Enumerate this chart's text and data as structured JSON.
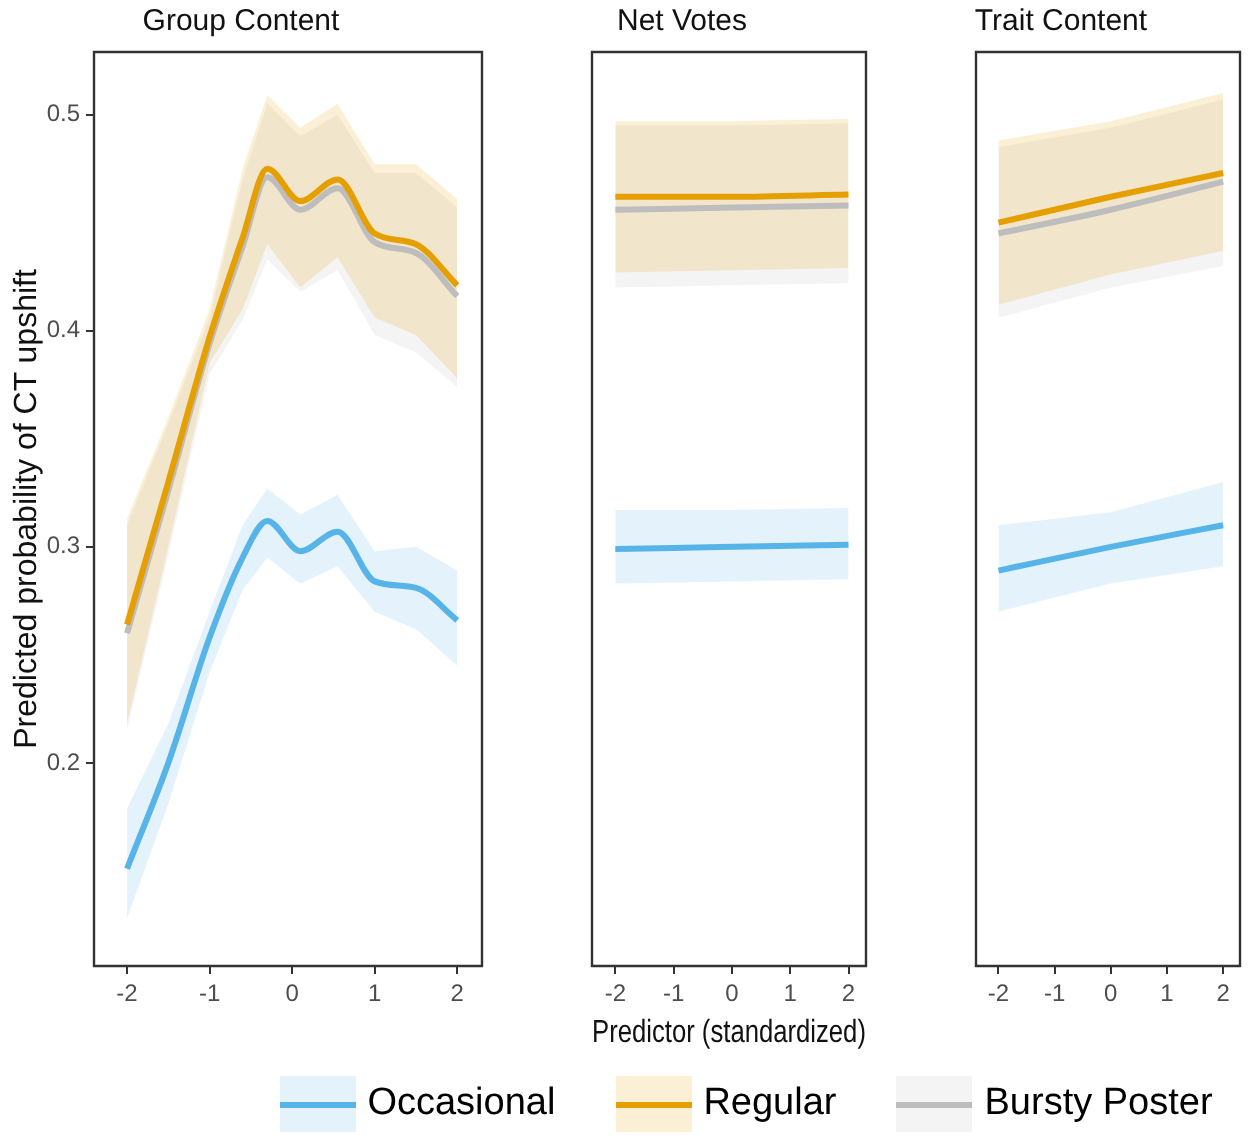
{
  "chart_data": [
    {
      "type": "line",
      "title": "Group Content",
      "ylabel": "Predicted probability of CT upshift",
      "xlim": [
        -2.4,
        2.3
      ],
      "xticks": [
        -2,
        -1,
        0,
        1,
        2
      ],
      "ylim": [
        0.106,
        0.529
      ],
      "yticks": [
        0.2,
        0.3,
        0.4,
        0.5
      ],
      "grid": false,
      "legend": "bottom",
      "x": [
        -2,
        -1.5,
        -1,
        -0.6,
        -0.3,
        0.1,
        0.55,
        1,
        1.5,
        2
      ],
      "series": [
        {
          "name": "Occasional",
          "color": "#56b4e9",
          "values": [
            0.151,
            0.2,
            0.258,
            0.295,
            0.312,
            0.298,
            0.307,
            0.284,
            0.281,
            0.266
          ],
          "lower": [
            0.128,
            0.181,
            0.242,
            0.28,
            0.295,
            0.283,
            0.291,
            0.27,
            0.262,
            0.245
          ],
          "upper": [
            0.179,
            0.218,
            0.27,
            0.31,
            0.327,
            0.315,
            0.324,
            0.298,
            0.3,
            0.289
          ]
        },
        {
          "name": "Regular",
          "color": "#e69f00",
          "values": [
            0.264,
            0.33,
            0.397,
            0.443,
            0.475,
            0.46,
            0.47,
            0.445,
            0.44,
            0.421
          ],
          "lower": [
            0.218,
            0.3,
            0.385,
            0.41,
            0.44,
            0.42,
            0.434,
            0.406,
            0.398,
            0.378
          ],
          "upper": [
            0.313,
            0.36,
            0.41,
            0.475,
            0.509,
            0.494,
            0.505,
            0.477,
            0.477,
            0.461
          ]
        },
        {
          "name": "Bursty Poster",
          "color": "#bdbdbd",
          "values": [
            0.26,
            0.326,
            0.394,
            0.439,
            0.471,
            0.456,
            0.466,
            0.441,
            0.436,
            0.416
          ],
          "lower": [
            0.215,
            0.296,
            0.38,
            0.405,
            0.433,
            0.418,
            0.428,
            0.398,
            0.39,
            0.374
          ],
          "upper": [
            0.31,
            0.357,
            0.406,
            0.47,
            0.505,
            0.49,
            0.5,
            0.473,
            0.473,
            0.457
          ]
        }
      ]
    },
    {
      "type": "line",
      "title": "Net Votes",
      "xlabel": "Predictor (standardized)",
      "xlim": [
        -2.4,
        2.3
      ],
      "xticks": [
        -2,
        -1,
        0,
        1,
        2
      ],
      "ylim": [
        0.106,
        0.529
      ],
      "yticks": [
        0.2,
        0.3,
        0.4,
        0.5
      ],
      "tick_labels": "x",
      "grid": false,
      "x": [
        -2,
        0,
        2
      ],
      "series": [
        {
          "color": "#56b4e9",
          "values": [
            0.299,
            0.3,
            0.301
          ],
          "lower": [
            0.283,
            0.284,
            0.285
          ],
          "upper": [
            0.317,
            0.317,
            0.318
          ]
        },
        {
          "color": "#e69f00",
          "values": [
            0.462,
            0.462,
            0.463
          ],
          "lower": [
            0.427,
            0.428,
            0.429
          ],
          "upper": [
            0.497,
            0.497,
            0.498
          ]
        },
        {
          "color": "#bdbdbd",
          "values": [
            0.456,
            0.457,
            0.458
          ],
          "lower": [
            0.42,
            0.421,
            0.422
          ],
          "upper": [
            0.495,
            0.495,
            0.496
          ]
        }
      ]
    },
    {
      "type": "line",
      "title": "Trait Content",
      "xlim": [
        -2.4,
        2.3
      ],
      "xticks": [
        -2,
        -1,
        0,
        1,
        2
      ],
      "ylim": [
        0.106,
        0.529
      ],
      "yticks": [
        0.2,
        0.3,
        0.4,
        0.5
      ],
      "tick_labels": "x",
      "grid": false,
      "x": [
        -2,
        0,
        2
      ],
      "series": [
        {
          "color": "#56b4e9",
          "values": [
            0.289,
            0.3,
            0.31
          ],
          "lower": [
            0.27,
            0.283,
            0.291
          ],
          "upper": [
            0.31,
            0.316,
            0.33
          ]
        },
        {
          "color": "#e69f00",
          "values": [
            0.45,
            0.462,
            0.473
          ],
          "lower": [
            0.412,
            0.426,
            0.437
          ],
          "upper": [
            0.488,
            0.497,
            0.51
          ]
        },
        {
          "color": "#bdbdbd",
          "values": [
            0.445,
            0.456,
            0.469
          ],
          "lower": [
            0.406,
            0.42,
            0.43
          ],
          "upper": [
            0.485,
            0.494,
            0.507
          ]
        }
      ]
    }
  ]
}
